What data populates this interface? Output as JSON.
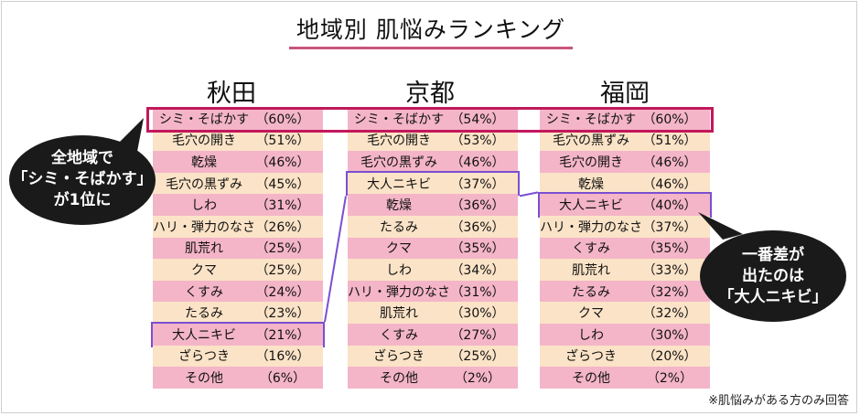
{
  "title": "地域別 肌悩みランキング",
  "note": "※肌悩みがある方のみ回答",
  "callout_left": [
    "全地域で",
    "「シミ・そばかす」",
    "が1位に"
  ],
  "callout_right": [
    "一番差が",
    "出たのは",
    "「大人ニキビ」"
  ],
  "colors": {
    "row_odd": "#f4b5c8",
    "row_even": "#fbe3c7",
    "top_box": "#c2185b",
    "highlight_box": "#7a4fd1",
    "callout": "#1a1a1a"
  },
  "chart_data": {
    "type": "table",
    "highlight_item": "大人ニキビ",
    "regions": [
      {
        "name": "秋田",
        "items": [
          {
            "label": "シミ・そばかす",
            "value": "（60%）"
          },
          {
            "label": "毛穴の開き",
            "value": "（51%）"
          },
          {
            "label": "乾燥",
            "value": "（46%）"
          },
          {
            "label": "毛穴の黒ずみ",
            "value": "（45%）"
          },
          {
            "label": "しわ",
            "value": "（31%）"
          },
          {
            "label": "ハリ・弾力のなさ",
            "value": "（26%）"
          },
          {
            "label": "肌荒れ",
            "value": "（25%）"
          },
          {
            "label": "クマ",
            "value": "（25%）"
          },
          {
            "label": "くすみ",
            "value": "（24%）"
          },
          {
            "label": "たるみ",
            "value": "（23%）"
          },
          {
            "label": "大人ニキビ",
            "value": "（21%）"
          },
          {
            "label": "ざらつき",
            "value": "（16%）"
          },
          {
            "label": "その他",
            "value": "（6%）"
          }
        ]
      },
      {
        "name": "京都",
        "items": [
          {
            "label": "シミ・そばかす",
            "value": "（54%）"
          },
          {
            "label": "毛穴の開き",
            "value": "（53%）"
          },
          {
            "label": "毛穴の黒ずみ",
            "value": "（46%）"
          },
          {
            "label": "大人ニキビ",
            "value": "（37%）"
          },
          {
            "label": "乾燥",
            "value": "（36%）"
          },
          {
            "label": "たるみ",
            "value": "（36%）"
          },
          {
            "label": "クマ",
            "value": "（35%）"
          },
          {
            "label": "しわ",
            "value": "（34%）"
          },
          {
            "label": "ハリ・弾力のなさ",
            "value": "（31%）"
          },
          {
            "label": "肌荒れ",
            "value": "（30%）"
          },
          {
            "label": "くすみ",
            "value": "（27%）"
          },
          {
            "label": "ざらつき",
            "value": "（25%）"
          },
          {
            "label": "その他",
            "value": "（2%）"
          }
        ]
      },
      {
        "name": "福岡",
        "items": [
          {
            "label": "シミ・そばかす",
            "value": "（60%）"
          },
          {
            "label": "毛穴の黒ずみ",
            "value": "（51%）"
          },
          {
            "label": "毛穴の開き",
            "value": "（46%）"
          },
          {
            "label": "乾燥",
            "value": "（46%）"
          },
          {
            "label": "大人ニキビ",
            "value": "（40%）"
          },
          {
            "label": "ハリ・弾力のなさ",
            "value": "（37%）"
          },
          {
            "label": "くすみ",
            "value": "（35%）"
          },
          {
            "label": "肌荒れ",
            "value": "（33%）"
          },
          {
            "label": "たるみ",
            "value": "（32%）"
          },
          {
            "label": "クマ",
            "value": "（32%）"
          },
          {
            "label": "しわ",
            "value": "（30%）"
          },
          {
            "label": "ざらつき",
            "value": "（20%）"
          },
          {
            "label": "その他",
            "value": "（2%）"
          }
        ]
      }
    ]
  }
}
